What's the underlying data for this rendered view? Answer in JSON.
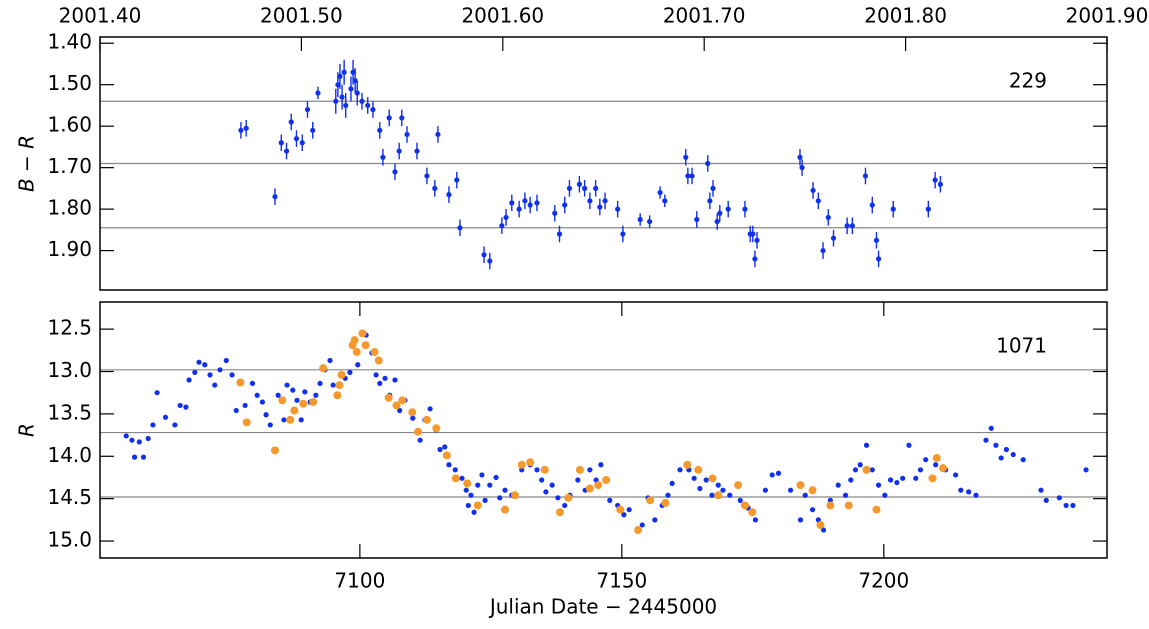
{
  "chart_data": [
    {
      "type": "scatter",
      "ylabel": "B − R",
      "annotation": "229",
      "y_inverted": true,
      "xlim": [
        7050.4,
        7242.6
      ],
      "ylim": [
        1.385,
        1.995
      ],
      "yticks": [
        {
          "value": 1.4,
          "label": "1.40"
        },
        {
          "value": 1.5,
          "label": "1.50"
        },
        {
          "value": 1.6,
          "label": "1.60"
        },
        {
          "value": 1.7,
          "label": "1.70"
        },
        {
          "value": 1.8,
          "label": "1.80"
        },
        {
          "value": 1.9,
          "label": "1.90"
        }
      ],
      "x2lim": [
        2001.4,
        2001.9
      ],
      "x2ticks": [
        {
          "value": 2001.4,
          "label": "2001.40"
        },
        {
          "value": 2001.5,
          "label": "2001.50"
        },
        {
          "value": 2001.6,
          "label": "2001.60"
        },
        {
          "value": 2001.7,
          "label": "2001.70"
        },
        {
          "value": 2001.8,
          "label": "2001.80"
        },
        {
          "value": 2001.9,
          "label": "2001.90"
        }
      ],
      "hlines": [
        1.54,
        1.69,
        1.845
      ],
      "series": [
        {
          "color": "#1030ee",
          "x": [
            7077.3,
            7078.3,
            7083.8,
            7085.0,
            7086.0,
            7086.9,
            7087.9,
            7089.0,
            7090.0,
            7091.0,
            7092.0,
            7095.4,
            7095.8,
            7096.2,
            7096.6,
            7097.0,
            7097.3,
            7098.3,
            7098.7,
            7099.1,
            7099.5,
            7100.4,
            7101.5,
            7102.5,
            7103.8,
            7104.4,
            7105.6,
            7106.7,
            7107.5,
            7108.0,
            7109.0,
            7110.9,
            7112.8,
            7114.3,
            7114.9,
            7117.0,
            7118.5,
            7119.1,
            7123.7,
            7124.8,
            7127.1,
            7127.9,
            7129.0,
            7130.4,
            7131.5,
            7132.5,
            7133.8,
            7137.2,
            7138.1,
            7139.1,
            7140.0,
            7141.9,
            7142.9,
            7143.9,
            7145.0,
            7145.8,
            7146.8,
            7149.2,
            7150.2,
            7153.5,
            7155.3,
            7157.3,
            7158.2,
            7162.2,
            7162.6,
            7163.4,
            7164.3,
            7166.4,
            7166.8,
            7167.4,
            7168.2,
            7168.7,
            7170.3,
            7173.5,
            7174.5,
            7175.0,
            7175.4,
            7175.8,
            7184.0,
            7184.4,
            7186.5,
            7187.5,
            7188.4,
            7189.4,
            7190.4,
            7193.0,
            7194.0,
            7196.5,
            7197.8,
            7198.6,
            7199.0,
            7201.8,
            7208.5,
            7209.8,
            7210.8
          ],
          "values": [
            1.61,
            1.605,
            1.77,
            1.64,
            1.66,
            1.59,
            1.63,
            1.64,
            1.56,
            1.61,
            1.52,
            1.54,
            1.5,
            1.48,
            1.53,
            1.47,
            1.55,
            1.51,
            1.47,
            1.49,
            1.52,
            1.54,
            1.55,
            1.56,
            1.61,
            1.675,
            1.58,
            1.71,
            1.66,
            1.58,
            1.62,
            1.66,
            1.72,
            1.75,
            1.62,
            1.765,
            1.73,
            1.845,
            1.91,
            1.925,
            1.84,
            1.82,
            1.785,
            1.8,
            1.78,
            1.79,
            1.785,
            1.81,
            1.86,
            1.79,
            1.75,
            1.74,
            1.75,
            1.78,
            1.75,
            1.795,
            1.78,
            1.8,
            1.86,
            1.825,
            1.83,
            1.76,
            1.78,
            1.675,
            1.72,
            1.72,
            1.825,
            1.69,
            1.78,
            1.75,
            1.83,
            1.81,
            1.8,
            1.8,
            1.86,
            1.86,
            1.92,
            1.875,
            1.675,
            1.7,
            1.755,
            1.78,
            1.9,
            1.82,
            1.87,
            1.84,
            1.84,
            1.72,
            1.79,
            1.875,
            1.92,
            1.8,
            1.8,
            1.73,
            1.74
          ],
          "errors": [
            0.02,
            0.02,
            0.02,
            0.02,
            0.02,
            0.02,
            0.02,
            0.02,
            0.02,
            0.02,
            0.015,
            0.03,
            0.03,
            0.03,
            0.03,
            0.03,
            0.03,
            0.03,
            0.03,
            0.03,
            0.03,
            0.02,
            0.02,
            0.02,
            0.02,
            0.02,
            0.02,
            0.02,
            0.02,
            0.02,
            0.02,
            0.02,
            0.02,
            0.02,
            0.02,
            0.02,
            0.02,
            0.02,
            0.02,
            0.02,
            0.02,
            0.02,
            0.02,
            0.02,
            0.02,
            0.02,
            0.02,
            0.02,
            0.02,
            0.02,
            0.02,
            0.02,
            0.02,
            0.02,
            0.02,
            0.02,
            0.02,
            0.02,
            0.02,
            0.015,
            0.015,
            0.015,
            0.015,
            0.02,
            0.02,
            0.02,
            0.02,
            0.02,
            0.02,
            0.02,
            0.02,
            0.02,
            0.02,
            0.02,
            0.02,
            0.02,
            0.02,
            0.02,
            0.02,
            0.02,
            0.02,
            0.02,
            0.02,
            0.02,
            0.02,
            0.02,
            0.02,
            0.02,
            0.02,
            0.02,
            0.02,
            0.02,
            0.02,
            0.02,
            0.02
          ]
        }
      ]
    },
    {
      "type": "scatter",
      "ylabel": "R",
      "annotation": "1071",
      "xlabel": "Julian Date − 2445000",
      "y_inverted": true,
      "xlim": [
        7050.4,
        7242.6
      ],
      "ylim": [
        12.18,
        15.2
      ],
      "xticks": [
        7100,
        7150,
        7200
      ],
      "yticks": [
        12.5,
        {
          "value": 13,
          "label": "13.0"
        },
        13.5,
        {
          "value": 14,
          "label": "14.0"
        },
        14.5,
        {
          "value": 15,
          "label": "15.0"
        }
      ],
      "hlines": [
        12.98,
        13.72,
        14.48
      ],
      "series": [
        {
          "color": "#1030ee",
          "x": [
            7055.4,
            7056.5,
            7057.0,
            7057.9,
            7058.7,
            7059.6,
            7060.5,
            7061.3,
            7062.9,
            7064.7,
            7065.7,
            7066.8,
            7067.4,
            7068.5,
            7069.3,
            7070.4,
            7071.4,
            7072.3,
            7073.3,
            7074.5,
            7075.6,
            7076.4,
            7078.1,
            7079.5,
            7080.4,
            7081.4,
            7082.1,
            7082.9,
            7084.4,
            7085.5,
            7086.1,
            7087.2,
            7088.0,
            7088.8,
            7089.5,
            7090.5,
            7091.6,
            7092.4,
            7093.3,
            7094.3,
            7094.9,
            7097.2,
            7098.1,
            7099.6,
            7101.2,
            7102.3,
            7103.1,
            7103.8,
            7104.8,
            7105.7,
            7106.7,
            7107.6,
            7108.6,
            7110.1,
            7111.5,
            7112.4,
            7113.4,
            7114.5,
            7115.3,
            7116.2,
            7117.0,
            7118.2,
            7119.5,
            7120.3,
            7120.7,
            7121.2,
            7121.8,
            7122.5,
            7123.3,
            7123.9,
            7124.8,
            7126.0,
            7126.7,
            7127.7,
            7129.0,
            7130.9,
            7132.5,
            7133.8,
            7134.7,
            7135.5,
            7136.7,
            7137.8,
            7139.1,
            7140.1,
            7141.6,
            7143.0,
            7143.9,
            7145.1,
            7146.0,
            7147.7,
            7149.2,
            7150.4,
            7151.4,
            7153.9,
            7155.0,
            7156.3,
            7157.7,
            7158.8,
            7159.6,
            7161.1,
            7162.8,
            7163.8,
            7164.9,
            7166.1,
            7167.2,
            7168.4,
            7169.3,
            7170.6,
            7172.6,
            7174.1,
            7175.5,
            7177.4,
            7178.7,
            7179.9,
            7182.2,
            7184.1,
            7185.0,
            7186.4,
            7187.5,
            7188.5,
            7189.8,
            7191.3,
            7192.7,
            7193.7,
            7194.6,
            7195.5,
            7196.7,
            7197.8,
            7199.0,
            7200.2,
            7201.3,
            7202.5,
            7203.6,
            7204.8,
            7206.1,
            7207.0,
            7208.0,
            7209.9,
            7211.8,
            7213.7,
            7214.7,
            7216.2,
            7217.6,
            7219.5,
            7220.5,
            7221.4,
            7222.4,
            7223.4,
            7224.7,
            7226.6,
            7230.0,
            7231.0,
            7233.5,
            7234.8,
            7236.1,
            7238.6
          ],
          "values": [
            13.76,
            13.81,
            14.01,
            13.83,
            14.01,
            13.79,
            13.63,
            13.25,
            13.54,
            13.63,
            13.4,
            13.42,
            13.1,
            13.01,
            12.89,
            12.92,
            13.04,
            13.16,
            12.98,
            12.87,
            13.04,
            13.46,
            13.4,
            13.14,
            13.28,
            13.36,
            13.51,
            13.63,
            13.28,
            13.57,
            13.16,
            13.22,
            13.34,
            13.57,
            13.24,
            13.36,
            13.28,
            13.14,
            12.98,
            12.87,
            13.16,
            13.08,
            13.01,
            12.92,
            12.57,
            12.78,
            13.04,
            13.14,
            13.08,
            13.28,
            13.1,
            13.46,
            13.34,
            13.55,
            13.81,
            13.57,
            13.44,
            13.69,
            13.92,
            13.89,
            14.1,
            14.16,
            14.26,
            14.4,
            14.58,
            14.46,
            14.66,
            14.34,
            14.22,
            14.52,
            14.34,
            14.25,
            14.49,
            14.4,
            14.46,
            14.16,
            14.1,
            14.16,
            14.28,
            14.42,
            14.34,
            14.49,
            14.58,
            14.46,
            14.28,
            14.4,
            14.16,
            14.28,
            14.1,
            14.52,
            14.58,
            14.69,
            14.63,
            14.81,
            14.49,
            14.75,
            14.58,
            14.46,
            14.32,
            14.16,
            14.16,
            14.26,
            14.38,
            14.28,
            14.46,
            14.34,
            14.4,
            14.46,
            14.52,
            14.61,
            14.75,
            14.4,
            14.22,
            14.2,
            14.4,
            14.75,
            14.46,
            14.63,
            14.75,
            14.87,
            14.52,
            14.34,
            14.46,
            14.28,
            14.16,
            14.1,
            13.87,
            14.16,
            14.34,
            14.46,
            14.28,
            14.31,
            14.26,
            13.87,
            14.26,
            14.16,
            14.04,
            14.1,
            14.16,
            14.22,
            14.4,
            14.42,
            14.46,
            13.81,
            13.67,
            13.87,
            14.02,
            13.92,
            13.98,
            14.04,
            14.4,
            14.52,
            14.49,
            14.58,
            14.58,
            14.16
          ]
        },
        {
          "color": "#f5992c",
          "x": [
            7077.2,
            7078.4,
            7083.8,
            7085.2,
            7086.7,
            7087.5,
            7089.2,
            7091.1,
            7093.0,
            7095.7,
            7096.1,
            7096.5,
            7098.6,
            7099.0,
            7099.4,
            7100.5,
            7101.1,
            7102.8,
            7103.6,
            7105.5,
            7107.0,
            7108.1,
            7110.0,
            7111.1,
            7112.8,
            7114.6,
            7116.6,
            7118.3,
            7120.5,
            7122.5,
            7127.7,
            7129.6,
            7130.9,
            7132.5,
            7135.3,
            7138.2,
            7139.8,
            7142.0,
            7143.9,
            7145.5,
            7147.0,
            7149.7,
            7153.1,
            7155.4,
            7158.3,
            7162.5,
            7164.6,
            7167.3,
            7168.4,
            7172.2,
            7173.5,
            7174.9,
            7184.1,
            7186.4,
            7187.9,
            7189.8,
            7193.3,
            7196.7,
            7198.6,
            7209.3,
            7210.1,
            7211.3
          ],
          "values": [
            13.13,
            13.6,
            13.93,
            13.34,
            13.57,
            13.46,
            13.38,
            13.36,
            12.96,
            13.28,
            13.16,
            13.04,
            12.69,
            12.63,
            12.77,
            12.55,
            12.69,
            12.77,
            12.87,
            13.31,
            13.4,
            13.34,
            13.48,
            13.71,
            13.57,
            13.67,
            13.99,
            14.26,
            14.32,
            14.58,
            14.63,
            14.46,
            14.1,
            14.07,
            14.16,
            14.66,
            14.49,
            14.16,
            14.38,
            14.34,
            14.28,
            14.63,
            14.87,
            14.52,
            14.55,
            14.1,
            14.16,
            14.26,
            14.46,
            14.34,
            14.58,
            14.66,
            14.34,
            14.4,
            14.81,
            14.58,
            14.58,
            14.16,
            14.63,
            14.26,
            14.02,
            14.14
          ]
        }
      ]
    }
  ]
}
